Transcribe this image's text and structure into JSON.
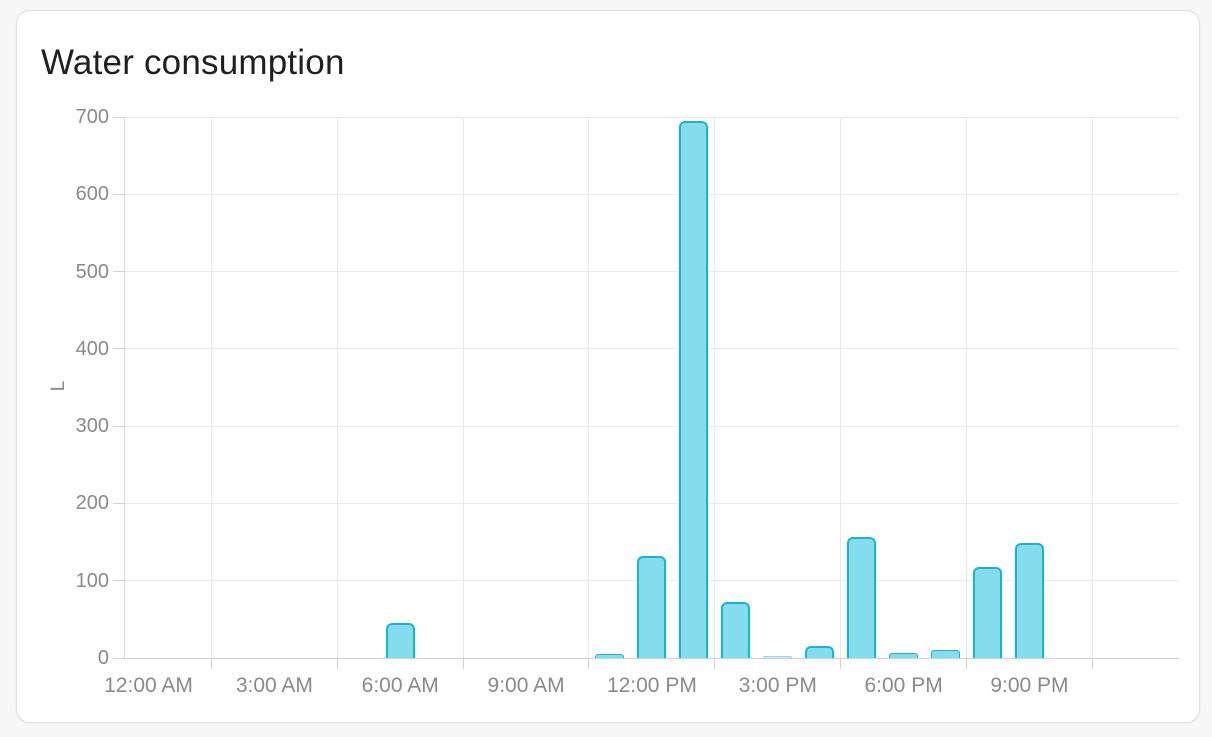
{
  "card": {
    "title": "Water consumption"
  },
  "chart_data": {
    "type": "bar",
    "title": "Water consumption",
    "ylabel": "L",
    "unit": "L",
    "ylim": [
      0,
      700
    ],
    "y_ticks": [
      0,
      100,
      200,
      300,
      400,
      500,
      600,
      700
    ],
    "x_tick_labels": [
      "12:00 AM",
      "3:00 AM",
      "6:00 AM",
      "9:00 AM",
      "12:00 PM",
      "3:00 PM",
      "6:00 PM",
      "9:00 PM"
    ],
    "categories": [
      "12:00 AM",
      "1:00 AM",
      "2:00 AM",
      "3:00 AM",
      "4:00 AM",
      "5:00 AM",
      "6:00 AM",
      "7:00 AM",
      "8:00 AM",
      "9:00 AM",
      "10:00 AM",
      "11:00 AM",
      "12:00 PM",
      "1:00 PM",
      "2:00 PM",
      "3:00 PM",
      "4:00 PM",
      "5:00 PM",
      "6:00 PM",
      "7:00 PM",
      "8:00 PM",
      "9:00 PM",
      "10:00 PM",
      "11:00 PM"
    ],
    "series": [
      {
        "name": "Water consumption",
        "values": [
          0,
          0,
          0,
          0,
          0,
          0,
          45,
          0,
          0,
          0,
          0,
          5,
          132,
          695,
          72,
          2,
          15,
          156,
          7,
          10,
          118,
          149,
          0,
          0
        ]
      }
    ],
    "grid": true,
    "legend": false,
    "colors": {
      "bar_fill": "#85dcec",
      "bar_border": "#0fb8d4",
      "grid_line": "#e9e9e9",
      "axis_line": "#d2d2d2",
      "tick_label": "#8a8a8a",
      "title_text": "#1f1f1f",
      "card_background": "#ffffff",
      "page_background": "#f7f7f7"
    }
  }
}
